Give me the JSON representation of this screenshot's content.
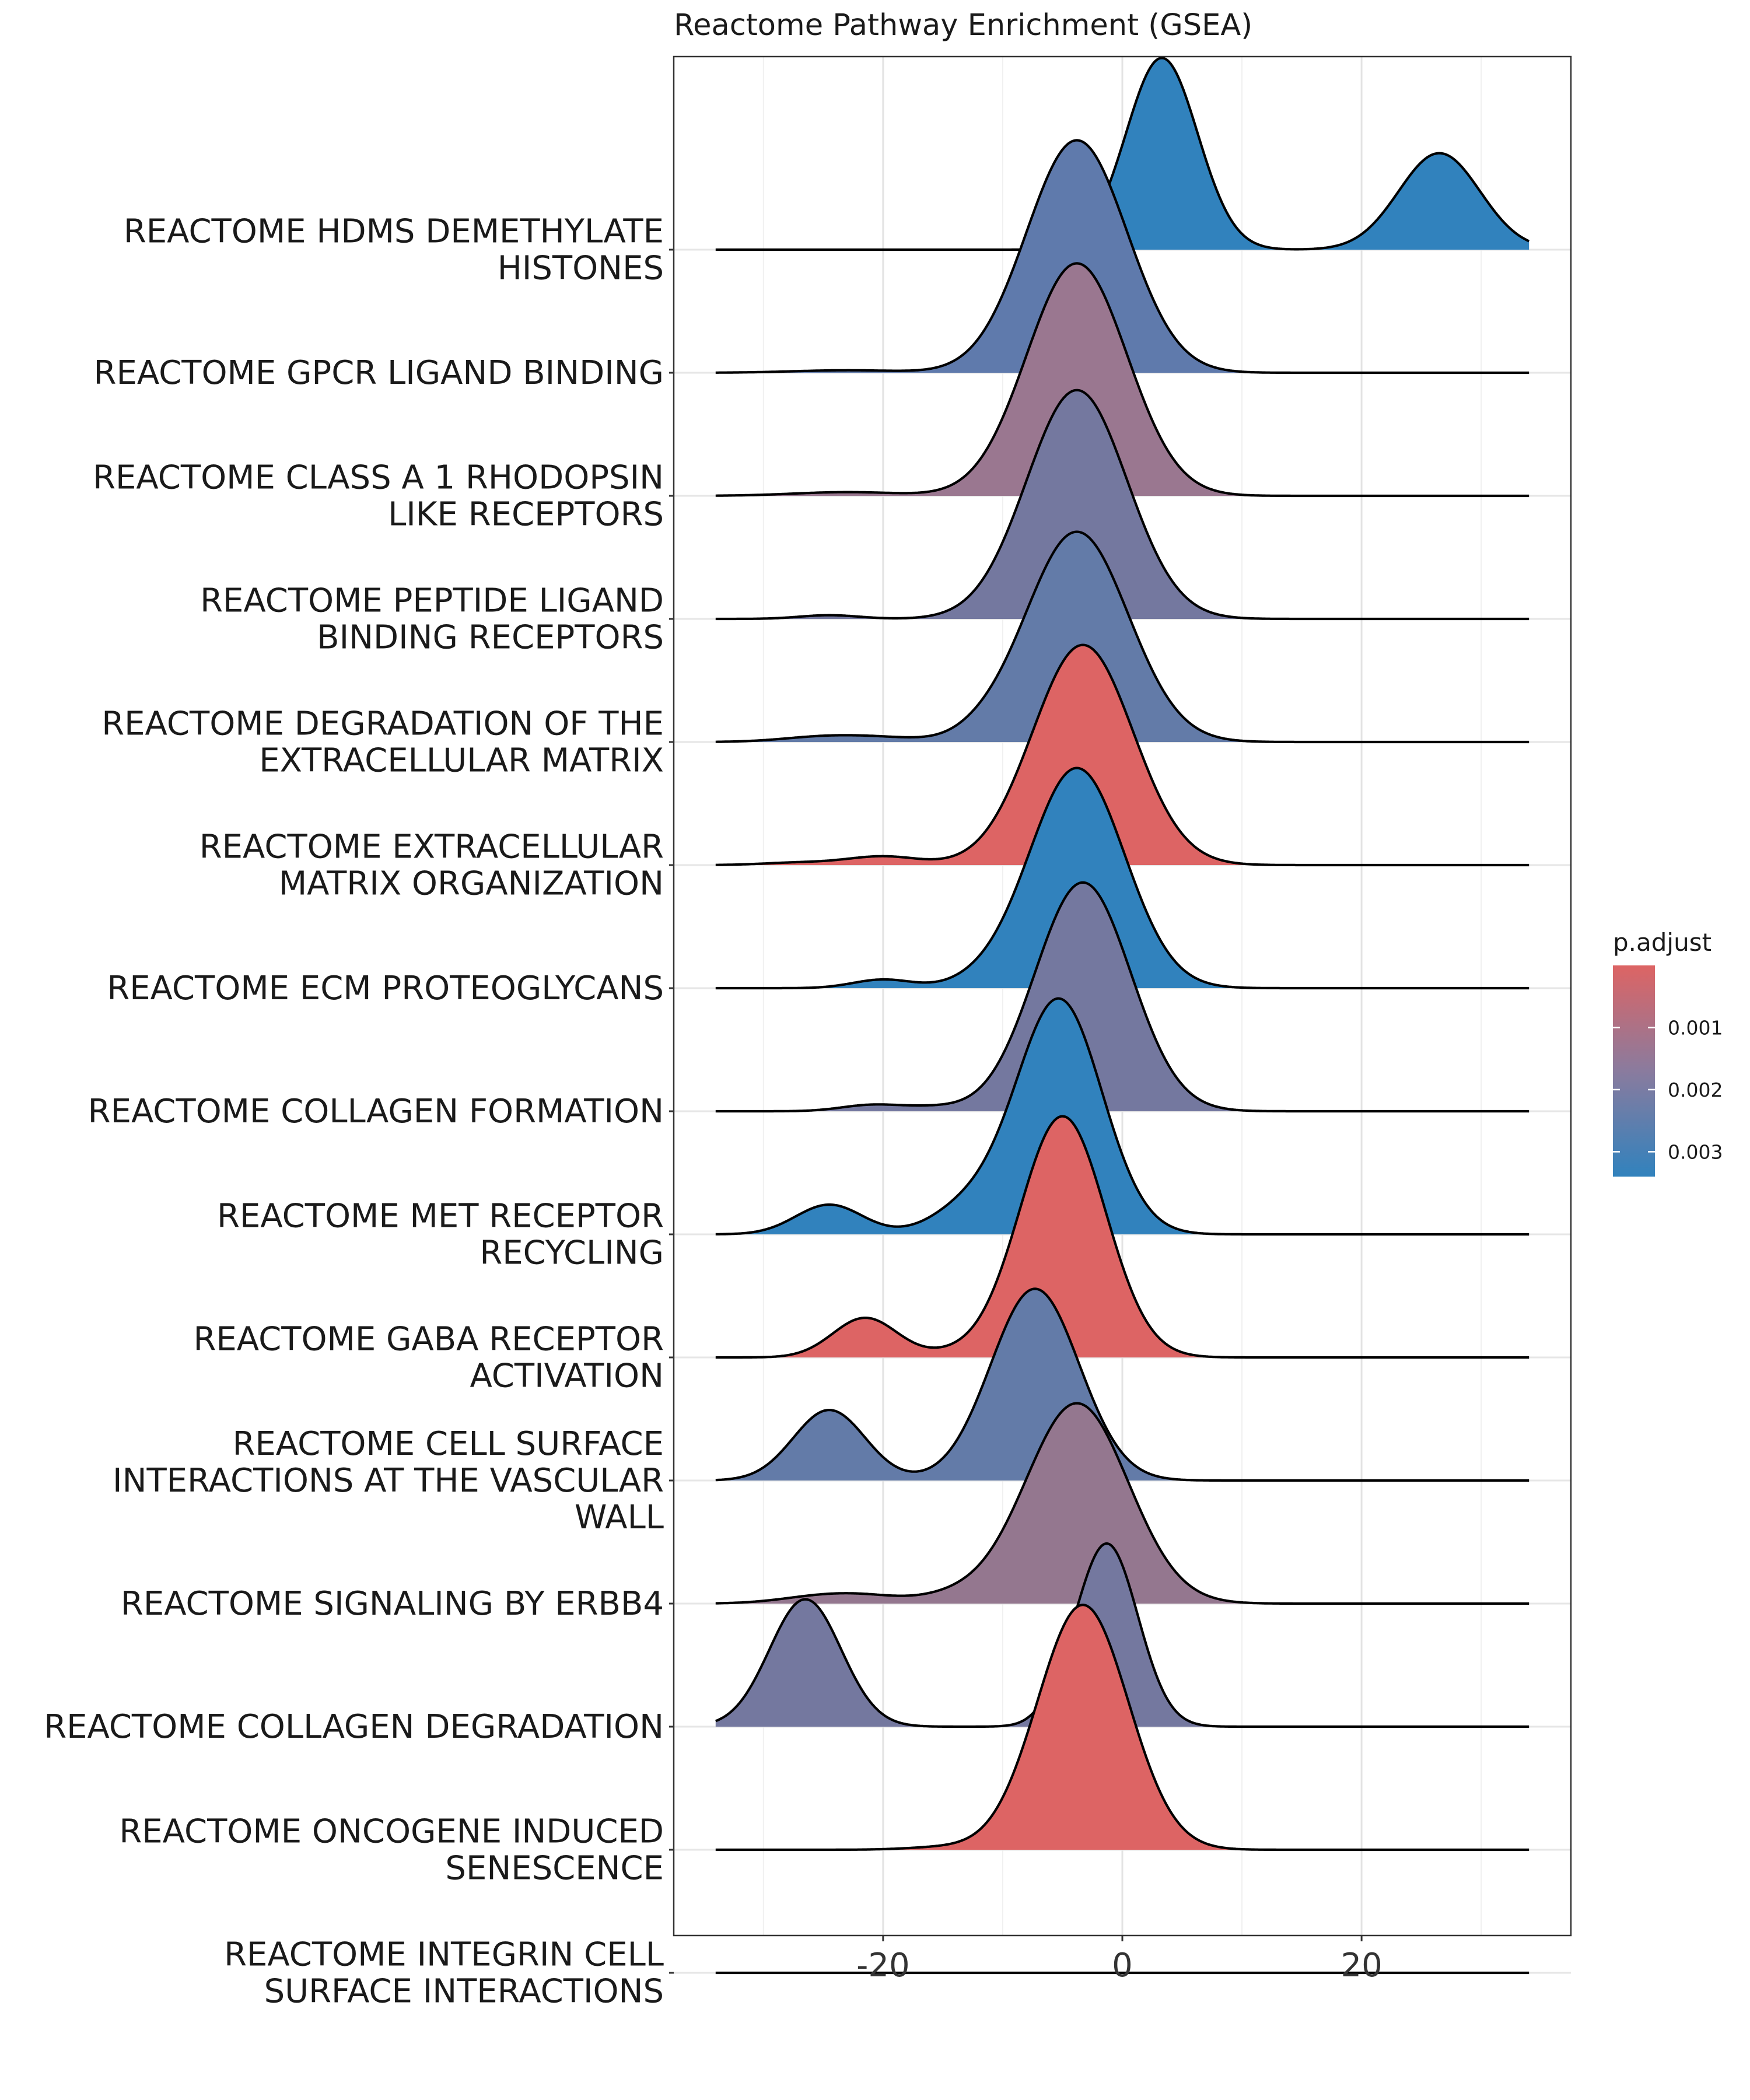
{
  "chart_data": {
    "type": "ridgeline",
    "title": "Reactome Pathway Enrichment (GSEA)",
    "xlabel": "",
    "ylabel": "",
    "xlim": [
      -37.5,
      37.5
    ],
    "x_ticks": [
      -20,
      0,
      20
    ],
    "x_tick_labels": [
      "-20",
      "0",
      "20"
    ],
    "grid": true,
    "legend": {
      "title": "p.adjust",
      "position": "right",
      "ticks": [
        0.001,
        0.002,
        0.003
      ],
      "tick_labels": [
        "0.001",
        "0.002",
        "0.003"
      ],
      "range": [
        0.0,
        0.0034
      ],
      "color_low": "#DD6464",
      "color_high": "#3182BD"
    },
    "series": [
      {
        "label": "REACTOME HDMS DEMETHYLATE HISTONES",
        "lines": [
          "REACTOME HDMS DEMETHYLATE",
          "HISTONES"
        ],
        "p_adjust": 0.0034,
        "color": "#3182BD",
        "peaks": [
          {
            "mu": 3.3,
            "sd": 3.0,
            "h": 1.55
          },
          {
            "mu": 26.5,
            "sd": 3.4,
            "h": 0.78
          }
        ]
      },
      {
        "label": "REACTOME GPCR LIGAND BINDING",
        "lines": [
          "REACTOME GPCR LIGAND BINDING"
        ],
        "p_adjust": 0.0028,
        "color": "#5F7AAC",
        "peaks": [
          {
            "mu": -3.8,
            "sd": 4.2,
            "h": 1.88
          },
          {
            "mu": -23,
            "sd": 4.5,
            "h": 0.02
          }
        ]
      },
      {
        "label": "REACTOME CLASS A 1 RHODOPSIN LIKE RECEPTORS",
        "lines": [
          "REACTOME CLASS A 1 RHODOPSIN",
          "LIKE RECEPTORS"
        ],
        "p_adjust": 0.0018,
        "color": "#9A7790",
        "peaks": [
          {
            "mu": -3.8,
            "sd": 4.2,
            "h": 1.88
          },
          {
            "mu": -23,
            "sd": 4.5,
            "h": 0.03
          }
        ]
      },
      {
        "label": "REACTOME PEPTIDE LIGAND BINDING RECEPTORS",
        "lines": [
          "REACTOME PEPTIDE LIGAND",
          "BINDING RECEPTORS"
        ],
        "p_adjust": 0.0025,
        "color": "#74789F",
        "peaks": [
          {
            "mu": -3.8,
            "sd": 4.2,
            "h": 1.85
          },
          {
            "mu": -24.5,
            "sd": 2.5,
            "h": 0.03
          }
        ]
      },
      {
        "label": "REACTOME DEGRADATION OF THE EXTRACELLULAR MATRIX",
        "lines": [
          "REACTOME DEGRADATION OF THE",
          "EXTRACELLULAR MATRIX"
        ],
        "p_adjust": 0.0029,
        "color": "#637BA8",
        "peaks": [
          {
            "mu": -3.8,
            "sd": 4.3,
            "h": 1.7
          },
          {
            "mu": -25,
            "sd": 3.5,
            "h": 0.04
          },
          {
            "mu": -20,
            "sd": 3.5,
            "h": 0.03
          },
          {
            "mu": -12,
            "sd": 2.0,
            "h": 0.03
          }
        ]
      },
      {
        "label": "REACTOME EXTRACELLULAR MATRIX ORGANIZATION",
        "lines": [
          "REACTOME EXTRACELLULAR",
          "MATRIX ORGANIZATION"
        ],
        "p_adjust": 0.0002,
        "color": "#DD6464",
        "peaks": [
          {
            "mu": -3.3,
            "sd": 4.2,
            "h": 1.78
          },
          {
            "mu": -20,
            "sd": 3.0,
            "h": 0.07
          },
          {
            "mu": -27,
            "sd": 3.0,
            "h": 0.02
          }
        ]
      },
      {
        "label": "REACTOME ECM PROTEOGLYCANS",
        "lines": [
          "REACTOME ECM PROTEOGLYCANS"
        ],
        "p_adjust": 0.0034,
        "color": "#3182BD",
        "peaks": [
          {
            "mu": -3.8,
            "sd": 4.0,
            "h": 1.78
          },
          {
            "mu": -20,
            "sd": 2.5,
            "h": 0.07
          },
          {
            "mu": -12,
            "sd": 2.5,
            "h": 0.04
          }
        ]
      },
      {
        "label": "REACTOME COLLAGEN FORMATION",
        "lines": [
          "REACTOME COLLAGEN FORMATION"
        ],
        "p_adjust": 0.0025,
        "color": "#74789F",
        "peaks": [
          {
            "mu": -3.3,
            "sd": 4.0,
            "h": 1.85
          },
          {
            "mu": -21,
            "sd": 2.5,
            "h": 0.05
          },
          {
            "mu": -16,
            "sd": 2.5,
            "h": 0.03
          }
        ]
      },
      {
        "label": "REACTOME MET RECEPTOR RECYCLING",
        "lines": [
          "REACTOME MET RECEPTOR",
          "RECYCLING"
        ],
        "p_adjust": 0.0034,
        "color": "#3182BD",
        "peaks": [
          {
            "mu": -5.3,
            "sd": 3.6,
            "h": 1.9
          },
          {
            "mu": -24.5,
            "sd": 2.8,
            "h": 0.24
          },
          {
            "mu": -13,
            "sd": 3.0,
            "h": 0.2
          }
        ]
      },
      {
        "label": "REACTOME GABA RECEPTOR ACTIVATION",
        "lines": [
          "REACTOME GABA RECEPTOR",
          "ACTIVATION"
        ],
        "p_adjust": 0.0002,
        "color": "#DD6464",
        "peaks": [
          {
            "mu": -5.0,
            "sd": 3.6,
            "h": 1.95
          },
          {
            "mu": -21.5,
            "sd": 2.7,
            "h": 0.32
          },
          {
            "mu": -14,
            "sd": 2.5,
            "h": 0.03
          }
        ]
      },
      {
        "label": "REACTOME CELL SURFACE INTERACTIONS AT THE VASCULAR WALL",
        "lines": [
          "REACTOME CELL SURFACE",
          "INTERACTIONS AT THE VASCULAR",
          "WALL"
        ],
        "p_adjust": 0.0029,
        "color": "#637BA8",
        "peaks": [
          {
            "mu": -7.3,
            "sd": 3.7,
            "h": 1.55
          },
          {
            "mu": -24.5,
            "sd": 3.0,
            "h": 0.57
          }
        ]
      },
      {
        "label": "REACTOME SIGNALING BY ERBB4",
        "lines": [
          "REACTOME SIGNALING BY ERBB4"
        ],
        "p_adjust": 0.0019,
        "color": "#94778F",
        "peaks": [
          {
            "mu": -3.8,
            "sd": 4.3,
            "h": 1.62
          },
          {
            "mu": -25,
            "sd": 3.5,
            "h": 0.06
          },
          {
            "mu": -21,
            "sd": 3.0,
            "h": 0.04
          },
          {
            "mu": -14,
            "sd": 3.0,
            "h": 0.06
          }
        ]
      },
      {
        "label": "REACTOME COLLAGEN DEGRADATION",
        "lines": [
          "REACTOME COLLAGEN DEGRADATION"
        ],
        "p_adjust": 0.0025,
        "color": "#74789F",
        "peaks": [
          {
            "mu": -1.3,
            "sd": 2.6,
            "h": 1.48
          },
          {
            "mu": -26.5,
            "sd": 3.0,
            "h": 1.03
          },
          {
            "mu": -5.5,
            "sd": 1.5,
            "h": 0.05
          }
        ]
      },
      {
        "label": "REACTOME ONCOGENE INDUCED SENESCENCE",
        "lines": [
          "REACTOME ONCOGENE INDUCED",
          "SENESCENCE"
        ],
        "p_adjust": 0.0002,
        "color": "#DD6464",
        "peaks": [
          {
            "mu": -3.3,
            "sd": 3.8,
            "h": 1.98
          },
          {
            "mu": -15,
            "sd": 3.0,
            "h": 0.02
          }
        ]
      },
      {
        "label": "REACTOME INTEGRIN CELL SURFACE INTERACTIONS",
        "lines": [
          "REACTOME INTEGRIN CELL",
          "SURFACE INTERACTIONS"
        ],
        "p_adjust": null,
        "color": null,
        "peaks": []
      }
    ]
  }
}
